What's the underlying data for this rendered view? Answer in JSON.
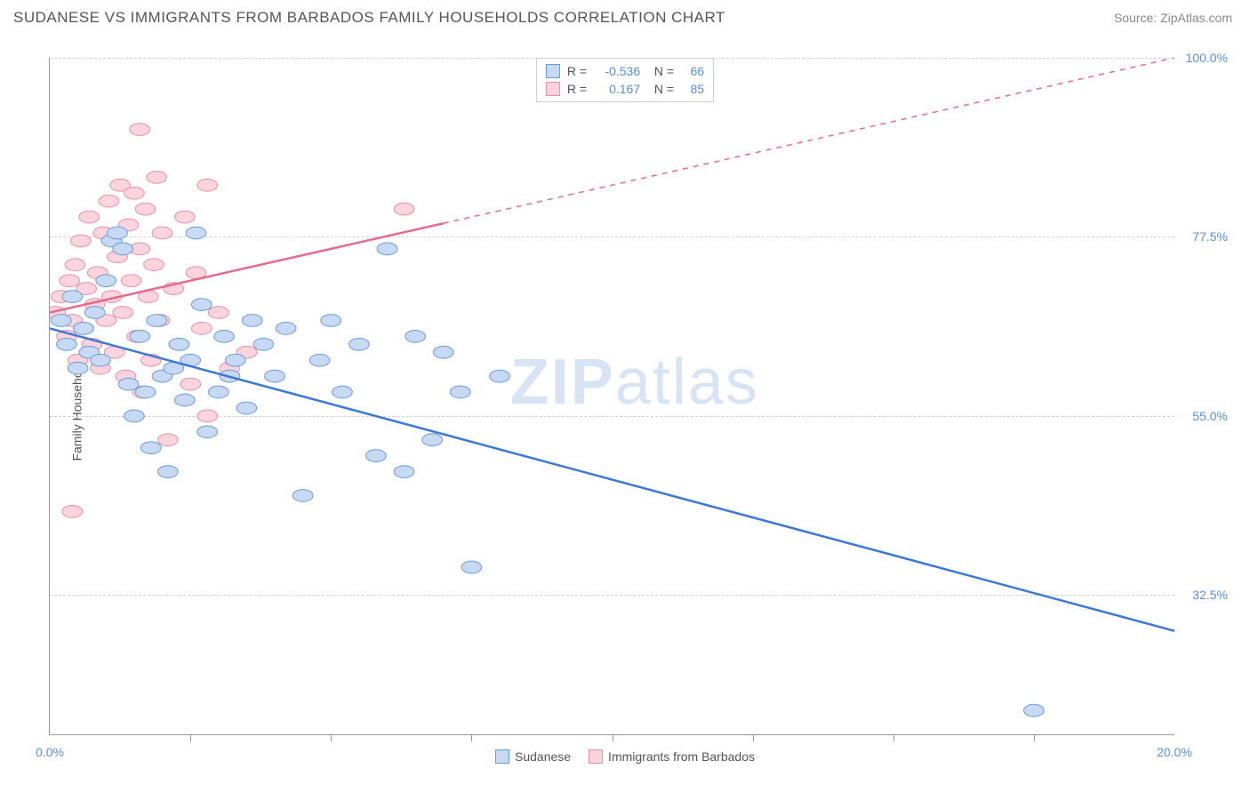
{
  "title": "SUDANESE VS IMMIGRANTS FROM BARBADOS FAMILY HOUSEHOLDS CORRELATION CHART",
  "source": "Source: ZipAtlas.com",
  "chart": {
    "type": "scatter",
    "yaxis_title": "Family Households",
    "watermark_a": "ZIP",
    "watermark_b": "atlas",
    "xlim": [
      0,
      20
    ],
    "ylim": [
      15,
      100
    ],
    "yticks": [
      {
        "v": 32.5,
        "label": "32.5%"
      },
      {
        "v": 55.0,
        "label": "55.0%"
      },
      {
        "v": 77.5,
        "label": "77.5%"
      },
      {
        "v": 100.0,
        "label": "100.0%"
      }
    ],
    "xticks_minor": [
      2.5,
      5.0,
      7.5,
      10.0,
      12.5,
      15.0,
      17.5
    ],
    "xtick_labels": [
      {
        "v": 0,
        "label": "0.0%"
      },
      {
        "v": 20,
        "label": "20.0%"
      }
    ],
    "background_color": "#ffffff",
    "grid_color": "#d0d0d0",
    "axis_color": "#999999",
    "marker_radius": 9,
    "marker_stroke_width": 1,
    "line_width": 2.5,
    "series": [
      {
        "name": "Sudanese",
        "fill": "#c8daf3",
        "stroke": "#6a9bd8",
        "line_color": "#3b78d8",
        "R": "-0.536",
        "N": "66",
        "trend": {
          "x1": 0,
          "y1": 66,
          "x2": 20,
          "y2": 28,
          "dashed_from_x": null
        },
        "points": [
          [
            0.2,
            67
          ],
          [
            0.3,
            64
          ],
          [
            0.4,
            70
          ],
          [
            0.5,
            61
          ],
          [
            0.6,
            66
          ],
          [
            0.7,
            63
          ],
          [
            0.8,
            68
          ],
          [
            0.9,
            62
          ],
          [
            1.0,
            72
          ],
          [
            1.1,
            77
          ],
          [
            1.2,
            78
          ],
          [
            1.3,
            76
          ],
          [
            1.4,
            59
          ],
          [
            1.5,
            55
          ],
          [
            1.6,
            65
          ],
          [
            1.7,
            58
          ],
          [
            1.8,
            51
          ],
          [
            1.9,
            67
          ],
          [
            2.0,
            60
          ],
          [
            2.1,
            48
          ],
          [
            2.2,
            61
          ],
          [
            2.3,
            64
          ],
          [
            2.4,
            57
          ],
          [
            2.5,
            62
          ],
          [
            2.6,
            78
          ],
          [
            2.7,
            69
          ],
          [
            2.8,
            53
          ],
          [
            3.0,
            58
          ],
          [
            3.1,
            65
          ],
          [
            3.2,
            60
          ],
          [
            3.3,
            62
          ],
          [
            3.5,
            56
          ],
          [
            3.6,
            67
          ],
          [
            3.8,
            64
          ],
          [
            4.0,
            60
          ],
          [
            4.2,
            66
          ],
          [
            4.5,
            45
          ],
          [
            4.8,
            62
          ],
          [
            5.0,
            67
          ],
          [
            5.2,
            58
          ],
          [
            5.5,
            64
          ],
          [
            5.8,
            50
          ],
          [
            6.0,
            76
          ],
          [
            6.3,
            48
          ],
          [
            6.5,
            65
          ],
          [
            6.8,
            52
          ],
          [
            7.0,
            63
          ],
          [
            7.3,
            58
          ],
          [
            7.5,
            36
          ],
          [
            8.0,
            60
          ],
          [
            17.5,
            18
          ]
        ]
      },
      {
        "name": "Immigrants from Barbados",
        "fill": "#fbd4de",
        "stroke": "#e890a8",
        "line_color": "#e56b8a",
        "R": "0.167",
        "N": "85",
        "trend": {
          "x1": 0,
          "y1": 68,
          "x2": 20,
          "y2": 100,
          "dashed_from_x": 7.0
        },
        "points": [
          [
            0.1,
            68
          ],
          [
            0.2,
            70
          ],
          [
            0.3,
            65
          ],
          [
            0.35,
            72
          ],
          [
            0.4,
            67
          ],
          [
            0.45,
            74
          ],
          [
            0.5,
            62
          ],
          [
            0.55,
            77
          ],
          [
            0.6,
            66
          ],
          [
            0.65,
            71
          ],
          [
            0.7,
            80
          ],
          [
            0.75,
            64
          ],
          [
            0.8,
            69
          ],
          [
            0.85,
            73
          ],
          [
            0.9,
            61
          ],
          [
            0.95,
            78
          ],
          [
            1.0,
            67
          ],
          [
            1.05,
            82
          ],
          [
            1.1,
            70
          ],
          [
            1.15,
            63
          ],
          [
            1.2,
            75
          ],
          [
            1.25,
            84
          ],
          [
            1.3,
            68
          ],
          [
            1.35,
            60
          ],
          [
            1.4,
            79
          ],
          [
            1.45,
            72
          ],
          [
            1.5,
            83
          ],
          [
            1.55,
            65
          ],
          [
            1.6,
            76
          ],
          [
            1.65,
            58
          ],
          [
            1.7,
            81
          ],
          [
            1.75,
            70
          ],
          [
            1.8,
            62
          ],
          [
            1.85,
            74
          ],
          [
            1.9,
            85
          ],
          [
            1.95,
            67
          ],
          [
            2.0,
            78
          ],
          [
            2.1,
            52
          ],
          [
            2.2,
            71
          ],
          [
            2.3,
            64
          ],
          [
            2.4,
            80
          ],
          [
            2.5,
            59
          ],
          [
            2.6,
            73
          ],
          [
            2.7,
            66
          ],
          [
            2.8,
            55
          ],
          [
            3.0,
            68
          ],
          [
            3.2,
            61
          ],
          [
            3.5,
            63
          ],
          [
            0.4,
            43
          ],
          [
            1.6,
            91
          ],
          [
            2.8,
            84
          ],
          [
            6.3,
            81
          ]
        ]
      }
    ]
  },
  "legend_bottom": [
    {
      "label": "Sudanese",
      "fill": "#c8daf3",
      "stroke": "#6a9bd8"
    },
    {
      "label": "Immigrants from Barbados",
      "fill": "#fbd4de",
      "stroke": "#e890a8"
    }
  ]
}
